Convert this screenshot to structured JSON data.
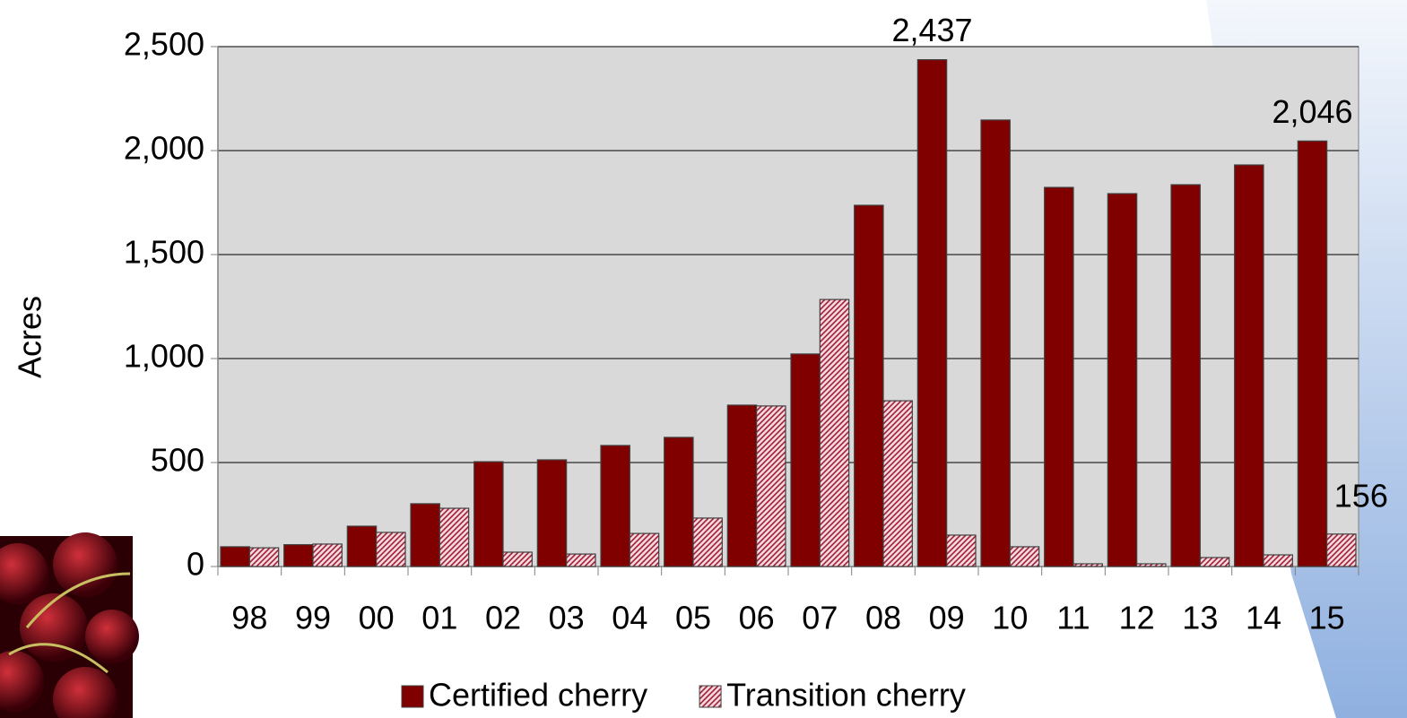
{
  "chart_data": {
    "type": "bar",
    "ylabel": "Acres",
    "categories": [
      "98",
      "99",
      "00",
      "01",
      "02",
      "03",
      "04",
      "05",
      "06",
      "07",
      "08",
      "09",
      "10",
      "11",
      "12",
      "13",
      "14",
      "15"
    ],
    "series": [
      {
        "name": "Certified cherry",
        "color": "#800000",
        "values": [
          95,
          105,
          194,
          302,
          504,
          513,
          582,
          621,
          776,
          1022,
          1737,
          2437,
          2147,
          1823,
          1793,
          1836,
          1931,
          2046
        ],
        "value_labels": [
          null,
          null,
          null,
          null,
          null,
          null,
          null,
          null,
          null,
          null,
          null,
          "2,437",
          null,
          null,
          null,
          null,
          null,
          "2,046"
        ]
      },
      {
        "name": "Transition cherry",
        "color": "#a0203a",
        "values": [
          90,
          108,
          164,
          280,
          69,
          60,
          159,
          233,
          772,
          1284,
          797,
          151,
          95,
          13,
          13,
          43,
          56,
          156
        ],
        "value_labels": [
          null,
          null,
          null,
          null,
          null,
          null,
          null,
          null,
          null,
          null,
          null,
          null,
          null,
          null,
          null,
          null,
          null,
          "156"
        ]
      }
    ],
    "ylim": [
      0,
      2500
    ],
    "yticks": [
      0,
      500,
      {
        "value": 1000,
        "label": "1,000"
      },
      {
        "value": 1500,
        "label": "1,500"
      },
      {
        "value": 2000,
        "label": "2,000"
      },
      {
        "value": 2500,
        "label": "2,500"
      }
    ],
    "grid": true,
    "legend": "bottom"
  }
}
